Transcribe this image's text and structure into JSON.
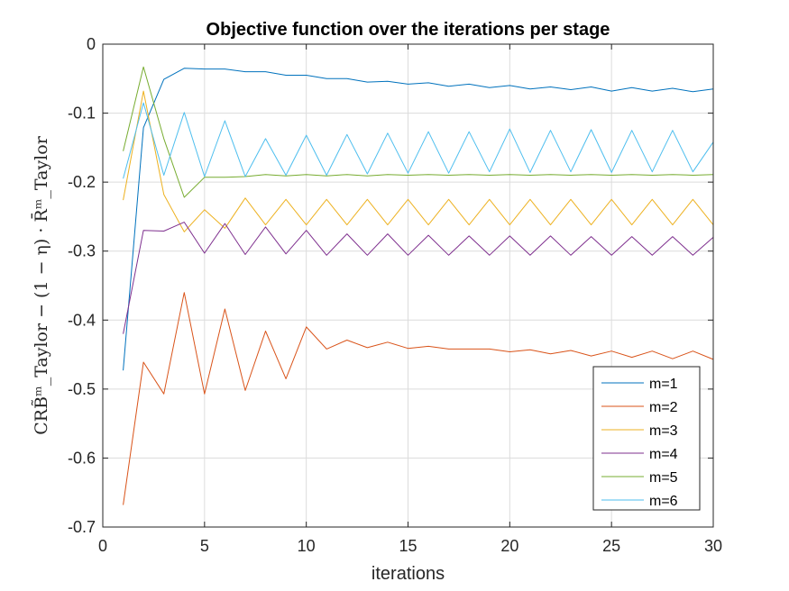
{
  "chart_data": {
    "type": "line",
    "title": "Objective function over the iterations per stage",
    "xlabel": "iterations",
    "ylabel": "CRB̃ᵐ_Taylor − (1 − η) · R̄ᵐ_Taylor",
    "xlim": [
      0,
      30
    ],
    "ylim": [
      -0.7,
      0
    ],
    "xticks": [
      0,
      5,
      10,
      15,
      20,
      25,
      30
    ],
    "yticks": [
      0,
      -0.1,
      -0.2,
      -0.3,
      -0.4,
      -0.5,
      -0.6,
      -0.7
    ],
    "xtick_labels": [
      "0",
      "5",
      "10",
      "15",
      "20",
      "25",
      "30"
    ],
    "ytick_labels": [
      "0",
      "-0.1",
      "-0.2",
      "-0.3",
      "-0.4",
      "-0.5",
      "-0.6",
      "-0.7"
    ],
    "grid": true,
    "legend_position": "bottom-right",
    "x": [
      1,
      2,
      3,
      4,
      5,
      6,
      7,
      8,
      9,
      10,
      11,
      12,
      13,
      14,
      15,
      16,
      17,
      18,
      19,
      20,
      21,
      22,
      23,
      24,
      25,
      26,
      27,
      28,
      29,
      30
    ],
    "series": [
      {
        "name": "m=1",
        "color": "#0072BD",
        "values": [
          -0.473,
          -0.121,
          -0.051,
          -0.035,
          -0.036,
          -0.036,
          -0.04,
          -0.04,
          -0.045,
          -0.045,
          -0.05,
          -0.05,
          -0.055,
          -0.054,
          -0.058,
          -0.056,
          -0.061,
          -0.058,
          -0.063,
          -0.06,
          -0.065,
          -0.062,
          -0.066,
          -0.062,
          -0.068,
          -0.063,
          -0.068,
          -0.064,
          -0.069,
          -0.065
        ]
      },
      {
        "name": "m=2",
        "color": "#D95319",
        "values": [
          -0.668,
          -0.461,
          -0.507,
          -0.36,
          -0.507,
          -0.384,
          -0.502,
          -0.416,
          -0.485,
          -0.41,
          -0.442,
          -0.429,
          -0.44,
          -0.432,
          -0.441,
          -0.438,
          -0.442,
          -0.442,
          -0.442,
          -0.446,
          -0.443,
          -0.449,
          -0.444,
          -0.452,
          -0.445,
          -0.454,
          -0.445,
          -0.456,
          -0.445,
          -0.457
        ]
      },
      {
        "name": "m=3",
        "color": "#EDB120",
        "values": [
          -0.226,
          -0.068,
          -0.218,
          -0.272,
          -0.24,
          -0.267,
          -0.223,
          -0.262,
          -0.225,
          -0.262,
          -0.225,
          -0.262,
          -0.225,
          -0.262,
          -0.225,
          -0.262,
          -0.225,
          -0.262,
          -0.225,
          -0.262,
          -0.225,
          -0.262,
          -0.225,
          -0.262,
          -0.225,
          -0.262,
          -0.225,
          -0.262,
          -0.225,
          -0.262
        ]
      },
      {
        "name": "m=4",
        "color": "#7E2F8E",
        "values": [
          -0.42,
          -0.27,
          -0.271,
          -0.258,
          -0.303,
          -0.26,
          -0.305,
          -0.265,
          -0.304,
          -0.27,
          -0.306,
          -0.275,
          -0.306,
          -0.275,
          -0.306,
          -0.277,
          -0.306,
          -0.278,
          -0.306,
          -0.278,
          -0.306,
          -0.278,
          -0.306,
          -0.279,
          -0.306,
          -0.279,
          -0.306,
          -0.279,
          -0.306,
          -0.28
        ]
      },
      {
        "name": "m=5",
        "color": "#77AC30",
        "values": [
          -0.155,
          -0.033,
          -0.137,
          -0.222,
          -0.193,
          -0.193,
          -0.192,
          -0.189,
          -0.191,
          -0.189,
          -0.191,
          -0.189,
          -0.191,
          -0.189,
          -0.19,
          -0.189,
          -0.19,
          -0.189,
          -0.19,
          -0.189,
          -0.19,
          -0.189,
          -0.19,
          -0.189,
          -0.19,
          -0.189,
          -0.19,
          -0.189,
          -0.19,
          -0.189
        ]
      },
      {
        "name": "m=6",
        "color": "#4DBEEE",
        "values": [
          -0.195,
          -0.085,
          -0.19,
          -0.099,
          -0.192,
          -0.111,
          -0.192,
          -0.137,
          -0.19,
          -0.132,
          -0.19,
          -0.131,
          -0.188,
          -0.129,
          -0.187,
          -0.127,
          -0.187,
          -0.127,
          -0.185,
          -0.123,
          -0.186,
          -0.125,
          -0.185,
          -0.124,
          -0.186,
          -0.125,
          -0.185,
          -0.125,
          -0.185,
          -0.142
        ]
      }
    ]
  }
}
